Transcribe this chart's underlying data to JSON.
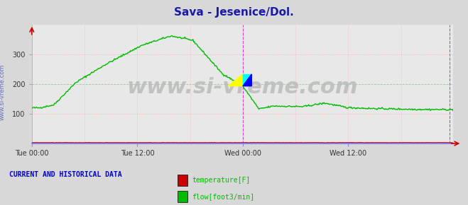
{
  "title": "Sava - Jesenice/Dol.",
  "title_color": "#1a1aaa",
  "title_fontsize": 11,
  "bg_color": "#d8d8d8",
  "plot_bg_color": "#e8e8e8",
  "watermark": "www.si-vreme.com",
  "watermark_color": "#bbbbbb",
  "watermark_fontsize": 22,
  "side_label": "www.si-vreme.com",
  "side_label_color": "#4444aa",
  "side_label_fontsize": 6,
  "xlabel_ticks": [
    "Tue 00:00",
    "Tue 12:00",
    "Wed 00:00",
    "Wed 12:00"
  ],
  "xlabel_tick_positions": [
    0,
    144,
    288,
    432
  ],
  "ylabel_ticks": [
    100,
    200,
    300
  ],
  "ylim": [
    0,
    400
  ],
  "xlim": [
    0,
    575
  ],
  "flow_color": "#00bb00",
  "temp_color": "#cc0000",
  "grid_pink_color": "#ffaaaa",
  "grid_green_color": "#99cc99",
  "vline_magenta_color": "#cc44cc",
  "vline_pos": 288,
  "vline_end_pos": 570,
  "bottom_axis_color": "#8888ff",
  "right_arrow_color": "#cc0000",
  "legend_title": "CURRENT AND HISTORICAL DATA",
  "legend_title_color": "#0000cc",
  "legend_title_fontsize": 7,
  "legend_temp_color": "#cc0000",
  "legend_flow_color": "#00bb00",
  "marker_x": 288,
  "tick_fontsize": 7,
  "tick_color": "#333333"
}
